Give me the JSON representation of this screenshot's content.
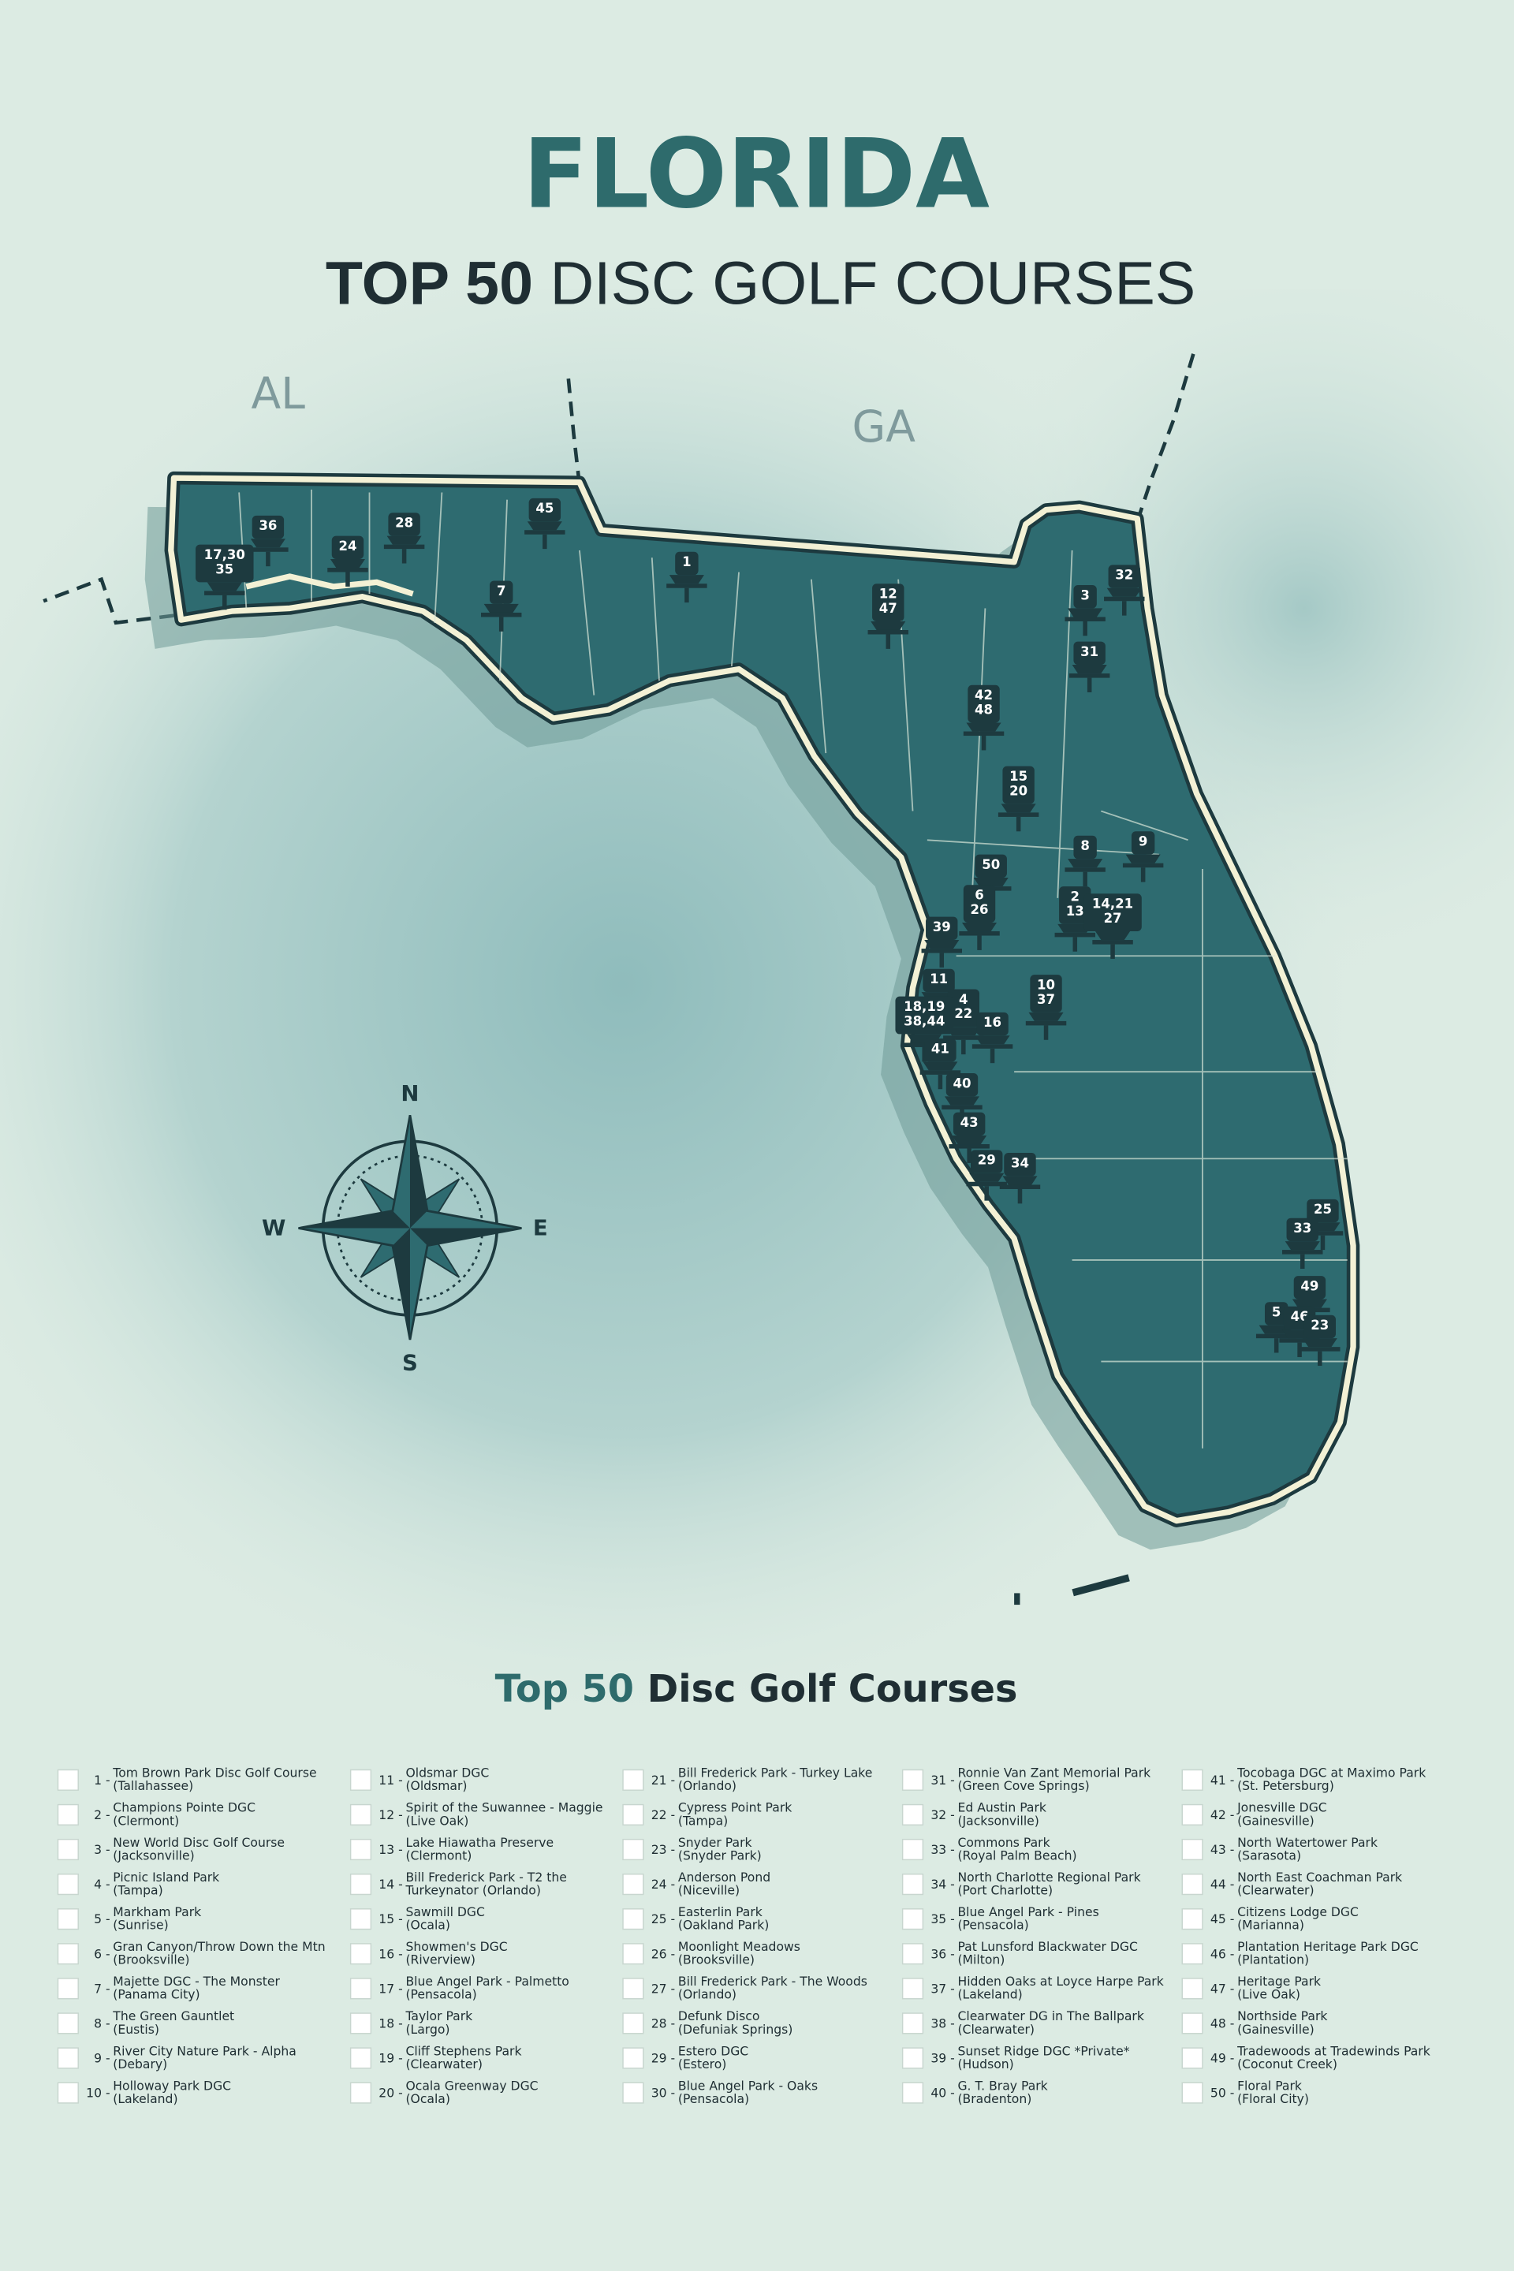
{
  "header": {
    "title": "FLORIDA",
    "subtitle_bold": "TOP 50",
    "subtitle_rest": "DISC GOLF COURSES"
  },
  "map": {
    "state_labels": [
      "AL",
      "GA"
    ],
    "compass": [
      "N",
      "E",
      "S",
      "W"
    ],
    "markers": [
      [
        "36"
      ],
      [
        "17,30",
        "35"
      ],
      [
        "24"
      ],
      [
        "28"
      ],
      [
        "45"
      ],
      [
        "7"
      ],
      [
        "1"
      ],
      [
        "12",
        "47"
      ],
      [
        "3"
      ],
      [
        "32"
      ],
      [
        "31"
      ],
      [
        "42",
        "48"
      ],
      [
        "15",
        "20"
      ],
      [
        "8"
      ],
      [
        "9"
      ],
      [
        "50"
      ],
      [
        "6",
        "26"
      ],
      [
        "2",
        "13"
      ],
      [
        "14,21",
        "27"
      ],
      [
        "39"
      ],
      [
        "11"
      ],
      [
        "10",
        "37"
      ],
      [
        "4",
        "22"
      ],
      [
        "18,19",
        "38,44"
      ],
      [
        "16"
      ],
      [
        "41"
      ],
      [
        "40"
      ],
      [
        "43"
      ],
      [
        "29"
      ],
      [
        "34"
      ],
      [
        "25"
      ],
      [
        "33"
      ],
      [
        "49"
      ],
      [
        "5"
      ],
      [
        "46"
      ],
      [
        "23"
      ]
    ]
  },
  "list": {
    "title_highlight": "Top 50",
    "title_rest": "Disc Golf Courses",
    "courses": [
      {
        "n": "1 -",
        "name": "Tom Brown Park Disc Golf Course",
        "place": "(Tallahassee)"
      },
      {
        "n": "2 -",
        "name": "Champions Pointe DGC",
        "place": "(Clermont)"
      },
      {
        "n": "3 -",
        "name": "New World Disc Golf Course",
        "place": "(Jacksonville)"
      },
      {
        "n": "4 -",
        "name": "Picnic Island Park",
        "place": "(Tampa)"
      },
      {
        "n": "5 -",
        "name": "Markham Park",
        "place": "(Sunrise)"
      },
      {
        "n": "6 -",
        "name": "Gran Canyon/Throw Down the Mtn",
        "place": "(Brooksville)"
      },
      {
        "n": "7 -",
        "name": "Majette DGC - The Monster",
        "place": "(Panama City)"
      },
      {
        "n": "8 -",
        "name": "The Green Gauntlet",
        "place": "(Eustis)"
      },
      {
        "n": "9 -",
        "name": "River City Nature Park - Alpha",
        "place": "(Debary)"
      },
      {
        "n": "10 -",
        "name": "Holloway Park DGC",
        "place": "(Lakeland)"
      },
      {
        "n": "11 -",
        "name": "Oldsmar DGC",
        "place": "(Oldsmar)"
      },
      {
        "n": "12 -",
        "name": "Spirit of the Suwannee - Maggie",
        "place": "(Live Oak)"
      },
      {
        "n": "13 -",
        "name": "Lake Hiawatha Preserve",
        "place": "(Clermont)"
      },
      {
        "n": "14 -",
        "name": "Bill Frederick Park - T2 the",
        "place": "Turkeynator (Orlando)"
      },
      {
        "n": "15 -",
        "name": "Sawmill DGC",
        "place": "(Ocala)"
      },
      {
        "n": "16 -",
        "name": "Showmen's DGC",
        "place": "(Riverview)"
      },
      {
        "n": "17 -",
        "name": "Blue Angel Park - Palmetto",
        "place": "(Pensacola)"
      },
      {
        "n": "18 -",
        "name": "Taylor Park",
        "place": "(Largo)"
      },
      {
        "n": "19 -",
        "name": "Cliff Stephens Park",
        "place": "(Clearwater)"
      },
      {
        "n": "20 -",
        "name": "Ocala Greenway DGC",
        "place": "(Ocala)"
      },
      {
        "n": "21 -",
        "name": "Bill Frederick Park - Turkey Lake",
        "place": "(Orlando)"
      },
      {
        "n": "22 -",
        "name": "Cypress Point Park",
        "place": "(Tampa)"
      },
      {
        "n": "23 -",
        "name": "Snyder Park",
        "place": "(Snyder Park)"
      },
      {
        "n": "24 -",
        "name": "Anderson Pond",
        "place": "(Niceville)"
      },
      {
        "n": "25 -",
        "name": "Easterlin Park",
        "place": "(Oakland Park)"
      },
      {
        "n": "26 -",
        "name": "Moonlight Meadows",
        "place": "(Brooksville)"
      },
      {
        "n": "27 -",
        "name": "Bill Frederick Park - The Woods",
        "place": "(Orlando)"
      },
      {
        "n": "28 -",
        "name": "Defunk Disco",
        "place": "(Defuniak Springs)"
      },
      {
        "n": "29 -",
        "name": "Estero DGC",
        "place": "(Estero)"
      },
      {
        "n": "30 -",
        "name": "Blue Angel Park - Oaks",
        "place": "(Pensacola)"
      },
      {
        "n": "31 -",
        "name": "Ronnie Van Zant Memorial Park",
        "place": "(Green Cove Springs)"
      },
      {
        "n": "32 -",
        "name": "Ed Austin Park",
        "place": "(Jacksonville)"
      },
      {
        "n": "33 -",
        "name": "Commons Park",
        "place": "(Royal Palm Beach)"
      },
      {
        "n": "34 -",
        "name": "North Charlotte Regional Park",
        "place": "(Port Charlotte)"
      },
      {
        "n": "35 -",
        "name": "Blue Angel Park - Pines",
        "place": "(Pensacola)"
      },
      {
        "n": "36 -",
        "name": "Pat Lunsford Blackwater DGC",
        "place": "(Milton)"
      },
      {
        "n": "37 -",
        "name": "Hidden Oaks at Loyce Harpe Park",
        "place": "(Lakeland)"
      },
      {
        "n": "38 -",
        "name": "Clearwater DG in The Ballpark",
        "place": "(Clearwater)"
      },
      {
        "n": "39 -",
        "name": "Sunset Ridge DGC *Private*",
        "place": "(Hudson)"
      },
      {
        "n": "40 -",
        "name": "G. T. Bray Park",
        "place": "(Bradenton)"
      },
      {
        "n": "41 -",
        "name": "Tocobaga DGC at Maximo Park",
        "place": "(St. Petersburg)"
      },
      {
        "n": "42 -",
        "name": "Jonesville DGC",
        "place": "(Gainesville)"
      },
      {
        "n": "43 -",
        "name": "North Watertower Park",
        "place": "(Sarasota)"
      },
      {
        "n": "44 -",
        "name": "North East Coachman Park",
        "place": "(Clearwater)"
      },
      {
        "n": "45 -",
        "name": "Citizens Lodge DGC",
        "place": "(Marianna)"
      },
      {
        "n": "46 -",
        "name": "Plantation Heritage Park DGC",
        "place": "(Plantation)"
      },
      {
        "n": "47 -",
        "name": "Heritage Park",
        "place": "(Live Oak)"
      },
      {
        "n": "48 -",
        "name": "Northside Park",
        "place": "(Gainesville)"
      },
      {
        "n": "49 -",
        "name": "Tradewoods at Tradewinds Park",
        "place": "(Coconut Creek)"
      },
      {
        "n": "50 -",
        "name": "Floral Park",
        "place": "(Floral City)"
      }
    ]
  }
}
